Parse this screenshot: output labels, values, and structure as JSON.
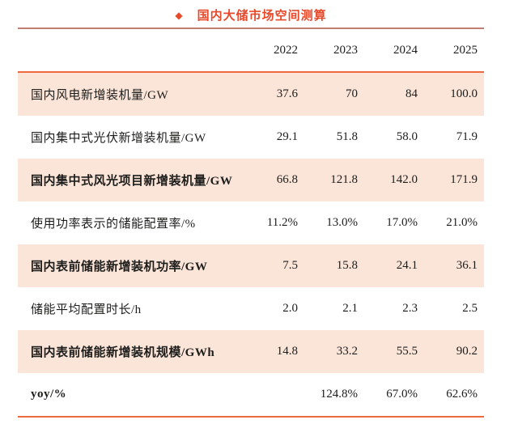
{
  "title": {
    "marker": "◆",
    "text": "国内大储市场空间测算"
  },
  "colors": {
    "accent_red": "#e64a2b",
    "thin_divider": "#c27e70",
    "table_border_orange": "#ec6a3d",
    "row_stripe_pink": "#fbe4d8",
    "text": "#1d1d1b"
  },
  "chart_data": {
    "type": "table",
    "title": "国内大储市场空间测算",
    "columns": [
      "2022",
      "2023",
      "2024",
      "2025"
    ],
    "rows": [
      {
        "label": "国内风电新增装机量/GW",
        "values": [
          "37.6",
          "70",
          "84",
          "100.0"
        ],
        "emphasis": false
      },
      {
        "label": "国内集中式光伏新增装机量/GW",
        "values": [
          "29.1",
          "51.8",
          "58.0",
          "71.9"
        ],
        "emphasis": false
      },
      {
        "label": "国内集中式风光项目新增装机量/GW",
        "values": [
          "66.8",
          "121.8",
          "142.0",
          "171.9"
        ],
        "emphasis": true
      },
      {
        "label": "使用功率表示的储能配置率/%",
        "values": [
          "11.2%",
          "13.0%",
          "17.0%",
          "21.0%"
        ],
        "emphasis": false
      },
      {
        "label": "国内表前储能新增装机功率/GW",
        "values": [
          "7.5",
          "15.8",
          "24.1",
          "36.1"
        ],
        "emphasis": true
      },
      {
        "label": "储能平均配置时长/h",
        "values": [
          "2.0",
          "2.1",
          "2.3",
          "2.5"
        ],
        "emphasis": false
      },
      {
        "label": "国内表前储能新增装机规模/GWh",
        "values": [
          "14.8",
          "33.2",
          "55.5",
          "90.2"
        ],
        "emphasis": true
      },
      {
        "label": "yoy/%",
        "values": [
          "",
          "124.8%",
          "67.0%",
          "62.6%"
        ],
        "emphasis": true
      }
    ],
    "layout": {
      "stripe_rows": "odd rows pink",
      "numeric_alignment": "right",
      "header_rule": "orange",
      "footer_rule": "orange"
    }
  }
}
